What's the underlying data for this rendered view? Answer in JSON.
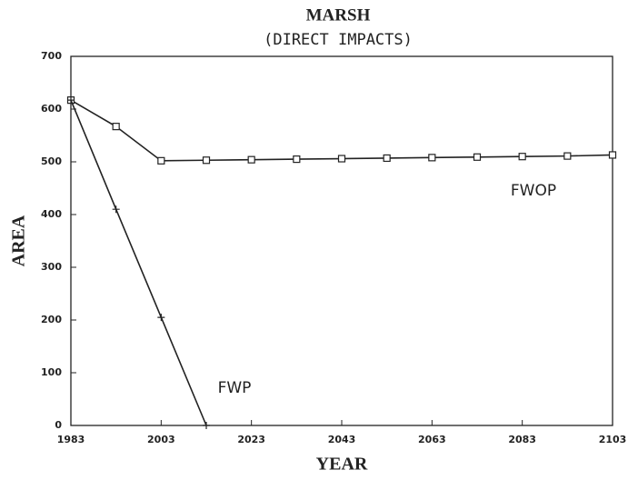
{
  "chart_data": {
    "type": "line",
    "title": "MARSH",
    "subtitle": "(DIRECT IMPACTS)",
    "x_label": "YEAR",
    "y_label": "AREA",
    "x": [
      1983,
      1993,
      2003,
      2013,
      2023,
      2033,
      2043,
      2053,
      2063,
      2073,
      2083,
      2093,
      2103
    ],
    "series": [
      {
        "name": "FWOP",
        "color": "#222222",
        "marker": "square",
        "values": [
          617,
          567,
          502,
          503,
          504,
          505,
          506,
          507,
          508,
          509,
          510,
          511,
          513
        ]
      },
      {
        "name": "FWP",
        "color": "#222222",
        "marker": "plus",
        "values": [
          617,
          410,
          205,
          0,
          null,
          null,
          null,
          null,
          null,
          null,
          null,
          null,
          null
        ]
      }
    ],
    "xlim": [
      1983,
      2103
    ],
    "xticks": [
      1983,
      2003,
      2023,
      2043,
      2063,
      2083,
      2103
    ],
    "ylim": [
      0,
      700
    ],
    "yticks": [
      0,
      100,
      200,
      300,
      400,
      500,
      600,
      700
    ],
    "grid": false
  }
}
